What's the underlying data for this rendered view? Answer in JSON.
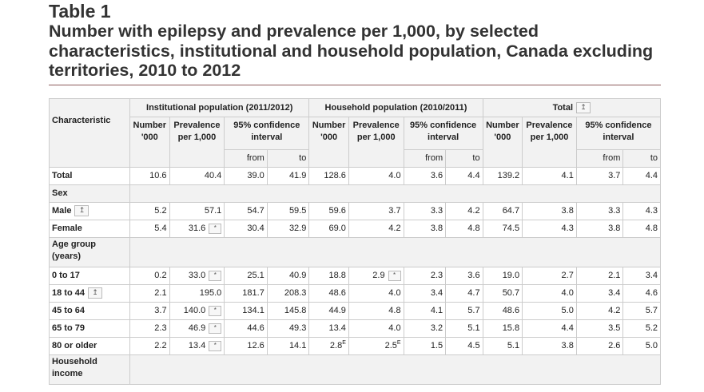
{
  "caption": {
    "label": "Table 1",
    "title": "Number with epilepsy and prevalence per 1,000, by selected characteristics, institutional and household population, Canada excluding territories, 2010 to 2012"
  },
  "header": {
    "characteristic": "Characteristic",
    "groups": [
      "Institutional population (2011/2012)",
      "Household population (2010/2011)",
      "Total"
    ],
    "number": "Number '000",
    "prevalence": "Prevalence per 1,000",
    "ci": "95% confidence interval",
    "from": "from",
    "to": "to",
    "footnote_icon": "↥"
  },
  "rows": {
    "total": {
      "label": "Total",
      "v": [
        "10.6",
        "40.4",
        "39.0",
        "41.9",
        "128.6",
        "4.0",
        "3.6",
        "4.4",
        "139.2",
        "4.1",
        "3.7",
        "4.4"
      ]
    },
    "sex": {
      "label": "Sex"
    },
    "male": {
      "label": "Male",
      "v": [
        "5.2",
        "57.1",
        "54.7",
        "59.5",
        "59.6",
        "3.7",
        "3.3",
        "4.2",
        "64.7",
        "3.8",
        "3.3",
        "4.3"
      ]
    },
    "female": {
      "label": "Female",
      "v": [
        "5.4",
        "31.6",
        "30.4",
        "32.9",
        "69.0",
        "4.2",
        "3.8",
        "4.8",
        "74.5",
        "4.3",
        "3.8",
        "4.8"
      ]
    },
    "age": {
      "label": "Age group (years)"
    },
    "a0": {
      "label": "0 to 17",
      "v": [
        "0.2",
        "33.0",
        "25.1",
        "40.9",
        "18.8",
        "2.9",
        "2.3",
        "3.6",
        "19.0",
        "2.7",
        "2.1",
        "3.4"
      ]
    },
    "a18": {
      "label": "18 to 44",
      "v": [
        "2.1",
        "195.0",
        "181.7",
        "208.3",
        "48.6",
        "4.0",
        "3.4",
        "4.7",
        "50.7",
        "4.0",
        "3.4",
        "4.6"
      ]
    },
    "a45": {
      "label": "45 to 64",
      "v": [
        "3.7",
        "140.0",
        "134.1",
        "145.8",
        "44.9",
        "4.8",
        "4.1",
        "5.7",
        "48.6",
        "5.0",
        "4.2",
        "5.7"
      ]
    },
    "a65": {
      "label": "65 to 79",
      "v": [
        "2.3",
        "46.9",
        "44.6",
        "49.3",
        "13.4",
        "4.0",
        "3.2",
        "5.1",
        "15.8",
        "4.4",
        "3.5",
        "5.2"
      ]
    },
    "a80": {
      "label": "80 or older",
      "v": [
        "2.2",
        "13.4",
        "12.6",
        "14.1",
        "2.8",
        "2.5",
        "1.5",
        "4.5",
        "5.1",
        "3.8",
        "2.6",
        "5.0"
      ],
      "flag": "E"
    },
    "income": {
      "label": "Household income"
    }
  },
  "marks": {
    "star": "*",
    "note": "↥"
  }
}
